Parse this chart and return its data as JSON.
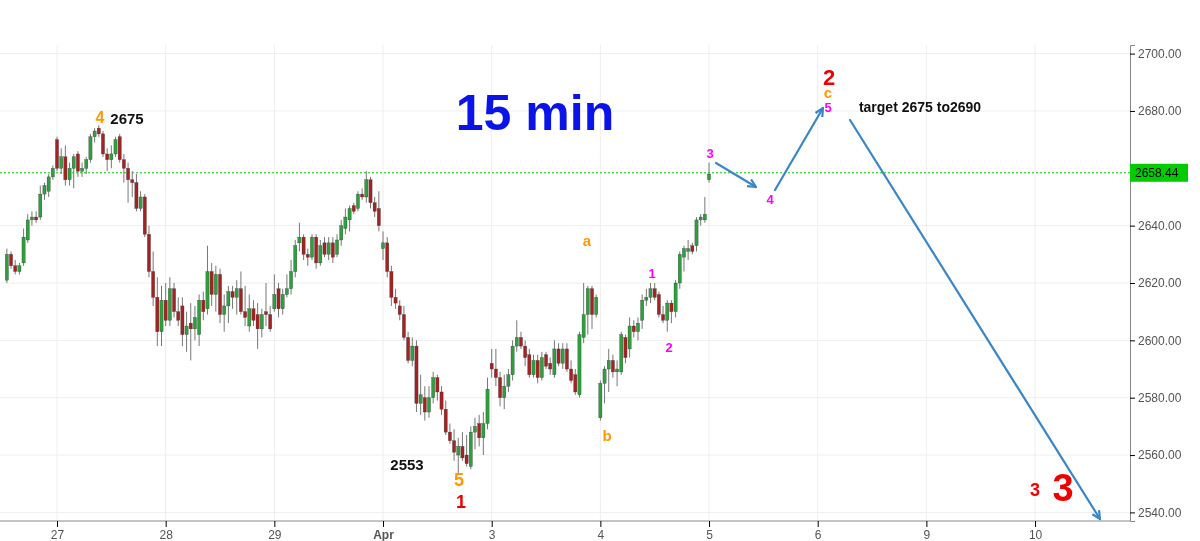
{
  "chart_data": {
    "type": "candlestick",
    "title": "15 min",
    "categories": [
      null,
      null,
      null,
      null,
      null,
      null,
      null,
      null,
      null,
      null,
      null,
      null,
      null,
      null,
      "27",
      null,
      null,
      null,
      null,
      null,
      null,
      null,
      null,
      null,
      null,
      null,
      null,
      null,
      null,
      null,
      null,
      null,
      null,
      null,
      null,
      null,
      null,
      null,
      null,
      null,
      "28",
      null,
      null,
      null,
      null,
      null,
      null,
      null,
      null,
      null,
      null,
      null,
      null,
      null,
      null,
      null,
      null,
      null,
      null,
      null,
      null,
      null,
      null,
      null,
      null,
      null,
      "29",
      null,
      null,
      null,
      null,
      null,
      null,
      null,
      null,
      null,
      null,
      null,
      null,
      null,
      null,
      null,
      null,
      null,
      null,
      null,
      null,
      null,
      null,
      null,
      null,
      null,
      "Apr",
      null,
      null,
      null,
      null,
      null,
      null,
      null,
      null,
      null,
      null,
      null,
      null,
      null,
      null,
      null,
      null,
      null,
      null,
      null,
      null,
      null,
      null,
      null,
      null,
      null,
      "3",
      null,
      null,
      null,
      null,
      null,
      null,
      null,
      null,
      null,
      null,
      null,
      null,
      null,
      null,
      null,
      null,
      null,
      null,
      null,
      null,
      null,
      null,
      null,
      null,
      null,
      "4",
      null,
      null,
      null,
      null,
      null,
      null,
      null,
      null,
      null,
      null,
      null,
      null,
      null,
      null,
      null,
      null,
      null,
      null,
      null,
      null,
      null,
      null,
      null,
      null,
      null,
      "5",
      null,
      null,
      null,
      null,
      null,
      null,
      null,
      null,
      null,
      null,
      null,
      null,
      null,
      null,
      null,
      null,
      null,
      null,
      null,
      null,
      null,
      null,
      null,
      null,
      null,
      "6",
      null,
      null,
      null,
      null,
      null,
      null,
      null,
      null,
      null,
      null,
      null,
      null,
      null,
      null,
      null,
      null,
      null,
      null,
      null,
      null,
      null,
      null,
      null,
      null,
      null,
      "9",
      null,
      null,
      null,
      null,
      null,
      null,
      null,
      null,
      null,
      null,
      null,
      null,
      null,
      null,
      null,
      null,
      null,
      null,
      null,
      null,
      null,
      null,
      null,
      null,
      null,
      "10",
      null,
      null,
      null,
      null,
      null,
      null,
      null,
      null,
      null,
      null,
      null,
      null,
      null,
      null,
      null,
      null,
      null,
      null,
      null,
      null,
      null,
      null
    ],
    "ohlc": [
      null,
      null,
      [
        2621,
        2632,
        2620,
        2630
      ],
      [
        2630,
        2631,
        2625,
        2626
      ],
      [
        2626,
        2628,
        2623,
        2624
      ],
      [
        2624,
        2627,
        2623,
        2626
      ],
      [
        2627,
        2639,
        2626,
        2636
      ],
      [
        2635,
        2644,
        2634,
        2642
      ],
      [
        2642,
        2645,
        2640,
        2643
      ],
      [
        2643,
        2645,
        2641,
        2642
      ],
      [
        2643,
        2654,
        2642,
        2651
      ],
      [
        2651,
        2655,
        2649,
        2654
      ],
      [
        2652,
        2658,
        2650,
        2657
      ],
      [
        2657,
        2661,
        2656,
        2660
      ],
      [
        2670,
        2671,
        2659,
        2660
      ],
      [
        2660,
        2667,
        2658,
        2664
      ],
      [
        2664,
        2668,
        2654,
        2656
      ],
      [
        2656,
        2662,
        2654,
        2660
      ],
      [
        2660,
        2665,
        2653,
        2664
      ],
      [
        2665,
        2666,
        2657,
        2659
      ],
      [
        2659,
        2662,
        2657,
        2660
      ],
      [
        2660,
        2664,
        2658,
        2663
      ],
      [
        2663,
        2672,
        2662,
        2671
      ],
      [
        2671,
        2674,
        2669,
        2673
      ],
      [
        2674,
        2675,
        2671,
        2672
      ],
      [
        2672,
        2673,
        2664,
        2665
      ],
      [
        2665,
        2667,
        2659,
        2663
      ],
      [
        2663,
        2668,
        2660,
        2665
      ],
      [
        2665,
        2671,
        2664,
        2670
      ],
      [
        2671,
        2672,
        2662,
        2663
      ],
      [
        2663,
        2665,
        2655,
        2660
      ],
      [
        2660,
        2662,
        2648,
        2656
      ],
      [
        2656,
        2659,
        2650,
        2655
      ],
      [
        2655,
        2658,
        2645,
        2646
      ],
      [
        2646,
        2652,
        2645,
        2650
      ],
      [
        2650,
        2651,
        2636,
        2637
      ],
      [
        2637,
        2640,
        2622,
        2624
      ],
      [
        2624,
        2631,
        2612,
        2615
      ],
      [
        2615,
        2622,
        2598,
        2603
      ],
      [
        2603,
        2619,
        2598,
        2614
      ],
      [
        2614,
        2620,
        2605,
        2607
      ],
      [
        2607,
        2622,
        2605,
        2618
      ],
      [
        2618,
        2620,
        2608,
        2610
      ],
      [
        2610,
        2615,
        2605,
        2607
      ],
      [
        2612,
        2615,
        2598,
        2602
      ],
      [
        2602,
        2610,
        2596,
        2605
      ],
      [
        2606,
        2613,
        2593,
        2604
      ],
      [
        2604,
        2612,
        2600,
        2608
      ],
      [
        2602,
        2616,
        2598,
        2614
      ],
      [
        2614,
        2617,
        2607,
        2610
      ],
      [
        2611,
        2633,
        2609,
        2624
      ],
      [
        2624,
        2627,
        2612,
        2616
      ],
      [
        2616,
        2626,
        2610,
        2623
      ],
      [
        2623,
        2625,
        2606,
        2609
      ],
      [
        2609,
        2616,
        2603,
        2612
      ],
      [
        2612,
        2619,
        2606,
        2617
      ],
      [
        2617,
        2619,
        2611,
        2615
      ],
      [
        2615,
        2621,
        2609,
        2618
      ],
      [
        2618,
        2624,
        2609,
        2610
      ],
      [
        2610,
        2619,
        2605,
        2608
      ],
      [
        2605,
        2616,
        2603,
        2611
      ],
      [
        2611,
        2614,
        2605,
        2607
      ],
      [
        2609,
        2613,
        2597,
        2604
      ],
      [
        2604,
        2611,
        2601,
        2609
      ],
      [
        2610,
        2620,
        2605,
        2609
      ],
      [
        2609,
        2612,
        2603,
        2604
      ],
      [
        2611,
        2623,
        2610,
        2616
      ],
      [
        2618,
        2620,
        2608,
        2611
      ],
      [
        2611,
        2618,
        2609,
        2616
      ],
      [
        2616,
        2623,
        2615,
        2618
      ],
      [
        2618,
        2628,
        2616,
        2624
      ],
      [
        2624,
        2635,
        2622,
        2633
      ],
      [
        2634,
        2641,
        2631,
        2636
      ],
      [
        2636,
        2637,
        2628,
        2630
      ],
      [
        2630,
        2632,
        2626,
        2629
      ],
      [
        2629,
        2637,
        2628,
        2636
      ],
      [
        2636,
        2637,
        2625,
        2627
      ],
      [
        2627,
        2635,
        2626,
        2633
      ],
      [
        2634,
        2636,
        2629,
        2630
      ],
      [
        2630,
        2636,
        2628,
        2634
      ],
      [
        2634,
        2636,
        2627,
        2629
      ],
      [
        2630,
        2637,
        2629,
        2635
      ],
      [
        2635,
        2642,
        2633,
        2640
      ],
      [
        2639,
        2646,
        2637,
        2643
      ],
      [
        2642,
        2647,
        2638,
        2646
      ],
      [
        2647,
        2648,
        2644,
        2645
      ],
      [
        2646,
        2652,
        2645,
        2651
      ],
      [
        2651,
        2653,
        2649,
        2650
      ],
      [
        2650,
        2659,
        2648,
        2656
      ],
      [
        2656,
        2657,
        2646,
        2648
      ],
      [
        2648,
        2650,
        2643,
        2645
      ],
      [
        2646,
        2652,
        2638,
        2640
      ],
      [
        2632,
        2638,
        2628,
        2634
      ],
      [
        2634,
        2636,
        2622,
        2624
      ],
      [
        2624,
        2626,
        2612,
        2615
      ],
      [
        2615,
        2618,
        2611,
        2613
      ],
      [
        2612,
        2614,
        2607,
        2609
      ],
      [
        2609,
        2612,
        2600,
        2601
      ],
      [
        2601,
        2603,
        2592,
        2593
      ],
      [
        2593,
        2601,
        2591,
        2598
      ],
      [
        2598,
        2600,
        2575,
        2578
      ],
      [
        2578,
        2588,
        2574,
        2581
      ],
      [
        2580,
        2584,
        2572,
        2575
      ],
      [
        2575,
        2584,
        2573,
        2580
      ],
      [
        2580,
        2589,
        2578,
        2587
      ],
      [
        2587,
        2588,
        2579,
        2582
      ],
      [
        2582,
        2584,
        2574,
        2576
      ],
      [
        2576,
        2579,
        2567,
        2568
      ],
      [
        2568,
        2571,
        2564,
        2565
      ],
      [
        2565,
        2569,
        2558,
        2561
      ],
      [
        2560,
        2566,
        2553,
        2563
      ],
      [
        2563,
        2568,
        2558,
        2559
      ],
      [
        2560,
        2567,
        2556,
        2557
      ],
      [
        2556,
        2570,
        2555,
        2568
      ],
      [
        2568,
        2573,
        2562,
        2570
      ],
      [
        2571,
        2574,
        2563,
        2566
      ],
      [
        2566,
        2575,
        2560,
        2571
      ],
      [
        2571,
        2587,
        2569,
        2583
      ],
      [
        2592,
        2597,
        2587,
        2590
      ],
      [
        2590,
        2597,
        2584,
        2587
      ],
      [
        2587,
        2589,
        2577,
        2580
      ],
      [
        2580,
        2588,
        2576,
        2584
      ],
      [
        2584,
        2590,
        2582,
        2588
      ],
      [
        2588,
        2600,
        2586,
        2598
      ],
      [
        2598,
        2607,
        2596,
        2601
      ],
      [
        2601,
        2603,
        2597,
        2598
      ],
      [
        2598,
        2600,
        2591,
        2594
      ],
      [
        2595,
        2597,
        2587,
        2588
      ],
      [
        2588,
        2595,
        2587,
        2593
      ],
      [
        2593,
        2595,
        2585,
        2587
      ],
      [
        2587,
        2596,
        2586,
        2594
      ],
      [
        2595,
        2596,
        2590,
        2591
      ],
      [
        2592,
        2594,
        2588,
        2590
      ],
      [
        2588,
        2600,
        2587,
        2597
      ],
      [
        2597,
        2599,
        2591,
        2592
      ],
      [
        2592,
        2599,
        2590,
        2597
      ],
      [
        2597,
        2599,
        2589,
        2590
      ],
      [
        2590,
        2593,
        2585,
        2586
      ],
      [
        2588,
        2590,
        2581,
        2582
      ],
      [
        2581,
        2603,
        2580,
        2602
      ],
      [
        2601,
        2620,
        2599,
        2609
      ],
      [
        2609,
        2619,
        2602,
        2618
      ],
      [
        2618,
        2619,
        2604,
        2609
      ],
      [
        2609,
        2616,
        2608,
        2615
      ],
      [
        2573,
        2586,
        2572,
        2585
      ],
      [
        2585,
        2591,
        2578,
        2590
      ],
      [
        2590,
        2597,
        2582,
        2593
      ],
      [
        2593,
        2595,
        2587,
        2589
      ],
      [
        2589,
        2593,
        2584,
        2590
      ],
      [
        2589,
        2603,
        2588,
        2602
      ],
      [
        2601,
        2602,
        2592,
        2594
      ],
      [
        2597,
        2608,
        2594,
        2605
      ],
      [
        2605,
        2607,
        2601,
        2603
      ],
      [
        2603,
        2608,
        2600,
        2606
      ],
      [
        2607,
        2616,
        2604,
        2614
      ],
      [
        2614,
        2618,
        2612,
        2615
      ],
      [
        2615,
        2620,
        2613,
        2618
      ],
      [
        2618,
        2620,
        2614,
        2615
      ],
      [
        2616,
        2617,
        2608,
        2609
      ],
      [
        2609,
        2612,
        2606,
        2607
      ],
      [
        2607,
        2614,
        2603,
        2613
      ],
      [
        2613,
        2614,
        2606,
        2610
      ],
      [
        2610,
        2621,
        2608,
        2620
      ],
      [
        2620,
        2631,
        2618,
        2630
      ],
      [
        2629,
        2633,
        2624,
        2632
      ],
      [
        2631,
        2635,
        2628,
        2632
      ],
      [
        2633,
        2634,
        2630,
        2631
      ],
      [
        2633,
        2643,
        2631,
        2642
      ],
      [
        2642,
        2644,
        2640,
        2643
      ],
      [
        2642,
        2650,
        2641,
        2644
      ],
      [
        2656,
        2662,
        2655,
        2658
      ],
      null,
      null,
      null,
      null,
      null,
      null,
      null,
      null,
      null,
      null,
      null,
      null,
      null,
      null,
      null,
      null,
      null,
      null,
      null,
      null,
      null,
      null,
      null,
      null,
      null,
      null,
      null,
      null,
      null,
      null,
      null,
      null,
      null,
      null,
      null,
      null,
      null,
      null,
      null,
      null,
      null,
      null,
      null,
      null,
      null,
      null,
      null,
      null,
      null,
      null,
      null,
      null,
      null,
      null,
      null,
      null,
      null,
      null,
      null,
      null,
      null,
      null,
      null,
      null,
      null,
      null,
      null,
      null,
      null,
      null,
      null,
      null,
      null,
      null,
      null,
      null,
      null,
      null,
      null,
      null,
      null,
      null,
      null,
      null,
      null,
      null,
      null,
      null,
      null,
      null,
      null,
      null,
      null,
      null,
      null,
      null,
      null,
      null,
      null,
      null
    ],
    "ylim": [
      2537,
      2703
    ],
    "yticks": [
      {
        "value": 2540,
        "label": "2540.00"
      },
      {
        "value": 2560,
        "label": "2560.00"
      },
      {
        "value": 2580,
        "label": "2580.00"
      },
      {
        "value": 2600,
        "label": "2600.00"
      },
      {
        "value": 2620,
        "label": "2620.00"
      },
      {
        "value": 2640,
        "label": "2640.00"
      },
      {
        "value": 2680,
        "label": "2680.00"
      },
      {
        "value": 2700,
        "label": "2700.00"
      }
    ],
    "grid": true,
    "ref_lines": [
      {
        "axis": "y",
        "value": 2658.44,
        "label": "2658.44",
        "color": "#00cc00",
        "line_style": "dotted"
      }
    ],
    "annotations": [
      "4",
      "2675",
      "2553",
      "5",
      "1",
      "a",
      "b",
      "1",
      "2",
      "3",
      "4",
      "5",
      "c",
      "2",
      "target 2675 to2690",
      "3",
      "3"
    ]
  }
}
